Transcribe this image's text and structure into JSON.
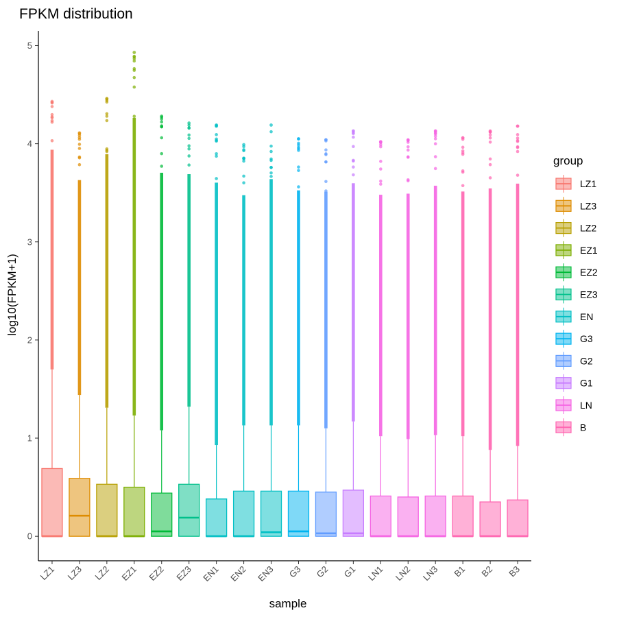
{
  "chart_data": {
    "type": "boxplot",
    "title": "FPKM distribution",
    "xlabel": "sample",
    "ylabel": "log10(FPKM+1)",
    "ylim": [
      -0.25,
      5.15
    ],
    "yticks": [
      0,
      1,
      2,
      3,
      4,
      5
    ],
    "grid": false,
    "legend": {
      "title": "group",
      "position": "right"
    },
    "groups": [
      {
        "name": "LZ1",
        "color": "#F8766D"
      },
      {
        "name": "LZ3",
        "color": "#DE8C00"
      },
      {
        "name": "LZ2",
        "color": "#B79F00"
      },
      {
        "name": "EZ1",
        "color": "#7CAE00"
      },
      {
        "name": "EZ2",
        "color": "#00BA38"
      },
      {
        "name": "EZ3",
        "color": "#00C08B"
      },
      {
        "name": "EN",
        "color": "#00BFC4"
      },
      {
        "name": "G3",
        "color": "#00B4F0"
      },
      {
        "name": "G2",
        "color": "#619CFF"
      },
      {
        "name": "G1",
        "color": "#C77CFF"
      },
      {
        "name": "LN",
        "color": "#F564E3"
      },
      {
        "name": "B",
        "color": "#FF64B0"
      }
    ],
    "samples": [
      {
        "name": "LZ1",
        "group": "LZ1",
        "q1": 0,
        "median": 0,
        "q3": 0.69,
        "whisker_high": 1.7,
        "outlier_max": 4.43
      },
      {
        "name": "LZ3",
        "group": "LZ3",
        "q1": 0,
        "median": 0.21,
        "q3": 0.59,
        "whisker_high": 1.44,
        "outlier_max": 4.11
      },
      {
        "name": "LZ2",
        "group": "LZ2",
        "q1": 0,
        "median": 0,
        "q3": 0.53,
        "whisker_high": 1.31,
        "outlier_max": 4.46
      },
      {
        "name": "EZ1",
        "group": "EZ1",
        "q1": 0,
        "median": 0,
        "q3": 0.5,
        "whisker_high": 1.23,
        "outlier_max": 4.93
      },
      {
        "name": "EZ2",
        "group": "EZ2",
        "q1": 0,
        "median": 0.05,
        "q3": 0.44,
        "whisker_high": 1.08,
        "outlier_max": 4.28
      },
      {
        "name": "EZ3",
        "group": "EZ3",
        "q1": 0,
        "median": 0.19,
        "q3": 0.53,
        "whisker_high": 1.32,
        "outlier_max": 4.21
      },
      {
        "name": "EN1",
        "group": "EN",
        "q1": 0,
        "median": 0,
        "q3": 0.38,
        "whisker_high": 0.93,
        "outlier_max": 4.19
      },
      {
        "name": "EN2",
        "group": "EN",
        "q1": 0,
        "median": 0,
        "q3": 0.46,
        "whisker_high": 1.13,
        "outlier_max": 3.99
      },
      {
        "name": "EN3",
        "group": "EN",
        "q1": 0,
        "median": 0.04,
        "q3": 0.46,
        "whisker_high": 1.13,
        "outlier_max": 4.19
      },
      {
        "name": "G3",
        "group": "G3",
        "q1": 0,
        "median": 0.05,
        "q3": 0.46,
        "whisker_high": 1.13,
        "outlier_max": 4.05
      },
      {
        "name": "G2",
        "group": "G2",
        "q1": 0,
        "median": 0.03,
        "q3": 0.45,
        "whisker_high": 1.1,
        "outlier_max": 4.04
      },
      {
        "name": "G1",
        "group": "G1",
        "q1": 0,
        "median": 0.03,
        "q3": 0.47,
        "whisker_high": 1.17,
        "outlier_max": 4.13
      },
      {
        "name": "LN1",
        "group": "LN",
        "q1": 0,
        "median": 0,
        "q3": 0.41,
        "whisker_high": 1.02,
        "outlier_max": 4.02
      },
      {
        "name": "LN2",
        "group": "LN",
        "q1": 0,
        "median": 0,
        "q3": 0.4,
        "whisker_high": 0.99,
        "outlier_max": 4.04
      },
      {
        "name": "LN3",
        "group": "LN",
        "q1": 0,
        "median": 0,
        "q3": 0.41,
        "whisker_high": 1.03,
        "outlier_max": 4.13
      },
      {
        "name": "B1",
        "group": "B",
        "q1": 0,
        "median": 0,
        "q3": 0.41,
        "whisker_high": 1.02,
        "outlier_max": 4.06
      },
      {
        "name": "B2",
        "group": "B",
        "q1": 0,
        "median": 0,
        "q3": 0.35,
        "whisker_high": 0.88,
        "outlier_max": 4.13
      },
      {
        "name": "B3",
        "group": "B",
        "q1": 0,
        "median": 0,
        "q3": 0.37,
        "whisker_high": 0.92,
        "outlier_max": 4.18
      }
    ]
  }
}
